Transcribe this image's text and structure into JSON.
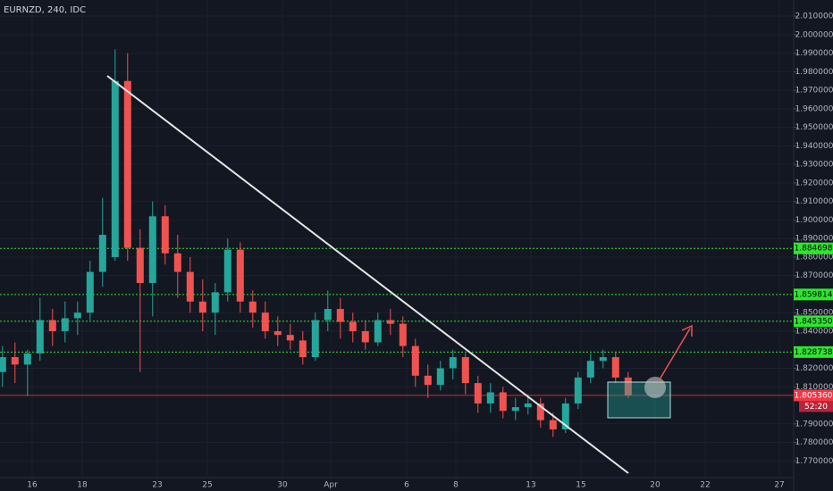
{
  "chart_data": {
    "type": "candlestick",
    "title": "EURNZD, 240, IDC",
    "candles": {
      "x": [
        0,
        1,
        2,
        3,
        4,
        5,
        6,
        7,
        8,
        9,
        10,
        11,
        12,
        13,
        14,
        15,
        16,
        17,
        18,
        19,
        20,
        21,
        22,
        23,
        24,
        25,
        26,
        27,
        28,
        29,
        30,
        31,
        32,
        33,
        34,
        35,
        36,
        37,
        38,
        39,
        40,
        41,
        42,
        43,
        44,
        45,
        46,
        47,
        48,
        49,
        50
      ],
      "open": [
        1.818,
        1.826,
        1.822,
        1.828,
        1.846,
        1.84,
        1.847,
        1.85,
        1.872,
        1.88,
        1.975,
        1.885,
        1.866,
        1.902,
        1.882,
        1.872,
        1.856,
        1.85,
        1.861,
        1.884,
        1.856,
        1.85,
        1.84,
        1.838,
        1.835,
        1.826,
        1.846,
        1.852,
        1.845,
        1.84,
        1.834,
        1.846,
        1.844,
        1.832,
        1.816,
        1.811,
        1.82,
        1.826,
        1.812,
        1.801,
        1.807,
        1.797,
        1.799,
        1.801,
        1.792,
        1.787,
        1.801,
        1.815,
        1.824,
        1.826,
        1.815
      ],
      "high": [
        1.832,
        1.834,
        1.83,
        1.858,
        1.852,
        1.856,
        1.856,
        1.878,
        1.912,
        1.992,
        1.99,
        1.895,
        1.91,
        1.908,
        1.892,
        1.88,
        1.868,
        1.866,
        1.89,
        1.888,
        1.862,
        1.856,
        1.848,
        1.844,
        1.84,
        1.85,
        1.862,
        1.858,
        1.85,
        1.846,
        1.85,
        1.852,
        1.848,
        1.836,
        1.822,
        1.824,
        1.83,
        1.828,
        1.816,
        1.812,
        1.81,
        1.804,
        1.806,
        1.804,
        1.796,
        1.804,
        1.818,
        1.828,
        1.83,
        1.829,
        1.818
      ],
      "low": [
        1.81,
        1.812,
        1.805,
        1.824,
        1.832,
        1.834,
        1.838,
        1.846,
        1.864,
        1.878,
        1.878,
        1.818,
        1.848,
        1.876,
        1.858,
        1.85,
        1.84,
        1.838,
        1.856,
        1.85,
        1.842,
        1.836,
        1.832,
        1.83,
        1.822,
        1.824,
        1.84,
        1.836,
        1.834,
        1.83,
        1.832,
        1.838,
        1.826,
        1.81,
        1.804,
        1.808,
        1.814,
        1.806,
        1.796,
        1.796,
        1.793,
        1.792,
        1.795,
        1.788,
        1.783,
        1.785,
        1.798,
        1.812,
        1.82,
        1.812,
        1.804
      ],
      "close": [
        1.826,
        1.822,
        1.828,
        1.846,
        1.84,
        1.847,
        1.85,
        1.872,
        1.892,
        1.975,
        1.885,
        1.866,
        1.902,
        1.882,
        1.872,
        1.856,
        1.85,
        1.861,
        1.884,
        1.856,
        1.85,
        1.84,
        1.838,
        1.835,
        1.826,
        1.846,
        1.852,
        1.845,
        1.84,
        1.834,
        1.846,
        1.844,
        1.832,
        1.816,
        1.811,
        1.82,
        1.826,
        1.812,
        1.801,
        1.807,
        1.797,
        1.799,
        1.801,
        1.792,
        1.787,
        1.801,
        1.815,
        1.824,
        1.826,
        1.815,
        1.80536
      ]
    },
    "up_color": "#26a69a",
    "down_color": "#ef5350",
    "xlim": [
      -0.2,
      63.23
    ],
    "xticks": [
      {
        "value": 2.37,
        "label": "16"
      },
      {
        "value": 6.37,
        "label": "18"
      },
      {
        "value": 12.37,
        "label": "23"
      },
      {
        "value": 16.37,
        "label": "25"
      },
      {
        "value": 22.37,
        "label": "30"
      },
      {
        "value": 26.23,
        "label": "Apr"
      },
      {
        "value": 32.3,
        "label": "6"
      },
      {
        "value": 36.23,
        "label": "8"
      },
      {
        "value": 42.23,
        "label": "13"
      },
      {
        "value": 46.23,
        "label": "15"
      },
      {
        "value": 52.16,
        "label": "20"
      },
      {
        "value": 56.16,
        "label": "22"
      },
      {
        "value": 62.09,
        "label": "27"
      }
    ],
    "ylim": [
      1.761,
      2.0187
    ],
    "yticks": [
      {
        "value": 1.77,
        "label": "1.770000"
      },
      {
        "value": 1.78,
        "label": "1.780000"
      },
      {
        "value": 1.79,
        "label": "1.790000"
      },
      {
        "value": 1.81,
        "label": "1.810000"
      },
      {
        "value": 1.82,
        "label": "1.820000"
      },
      {
        "value": 1.84,
        "label": "1.840000"
      },
      {
        "value": 1.85,
        "label": "1.850000"
      },
      {
        "value": 1.87,
        "label": "1.870000"
      },
      {
        "value": 1.88,
        "label": "1.880000"
      },
      {
        "value": 1.89,
        "label": "1.890000"
      },
      {
        "value": 1.9,
        "label": "1.900000"
      },
      {
        "value": 1.91,
        "label": "1.910000"
      },
      {
        "value": 1.92,
        "label": "1.920000"
      },
      {
        "value": 1.93,
        "label": "1.930000"
      },
      {
        "value": 1.94,
        "label": "1.940000"
      },
      {
        "value": 1.95,
        "label": "1.950000"
      },
      {
        "value": 1.96,
        "label": "1.960000"
      },
      {
        "value": 1.97,
        "label": "1.970000"
      },
      {
        "value": 1.98,
        "label": "1.980000"
      },
      {
        "value": 1.99,
        "label": "1.990000"
      },
      {
        "value": 2.0,
        "label": "2.000000"
      },
      {
        "value": 2.01,
        "label": "2.010000"
      }
    ],
    "grid": true,
    "level_color": "#2ee62e",
    "levels": [
      {
        "value": 1.884698,
        "label": "1.884698"
      },
      {
        "value": 1.859814,
        "label": "1.859814"
      },
      {
        "value": 1.84535,
        "label": "1.845350"
      },
      {
        "value": 1.828738,
        "label": "1.828738"
      }
    ],
    "last_price": {
      "value": 1.80536,
      "label": "1.805360",
      "color": "#f23645"
    },
    "countdown": "52:20"
  }
}
